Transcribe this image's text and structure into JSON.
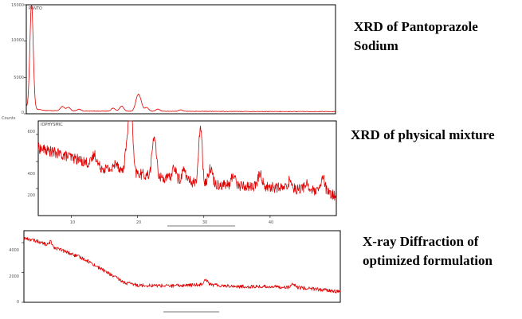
{
  "captions": {
    "c1_line1": "XRD of Pantoprazole",
    "c1_line2": "Sodium",
    "c2": "XRD of physical mixture",
    "c3_line1": "X-ray Diffraction of",
    "c3_line2": "optimized formulation"
  },
  "line_color": "#e00000",
  "chart_data": [
    {
      "type": "line",
      "title": "XRD of Pantoprazole Sodium",
      "tag": "PANTO",
      "ylabel": "Counts",
      "xlim": [
        3,
        50
      ],
      "ylim": [
        0,
        15000
      ],
      "yticks": [
        0,
        5000,
        10000,
        15000
      ],
      "ytick_labels": [
        "0",
        "5000",
        "10000",
        "15000"
      ],
      "series": [
        {
          "baseline": [
            [
              3,
              900
            ],
            [
              4,
              700
            ],
            [
              6,
              450
            ],
            [
              10,
              380
            ],
            [
              20,
              350
            ],
            [
              30,
              330
            ],
            [
              40,
              300
            ],
            [
              50,
              300
            ]
          ],
          "peaks": [
            [
              3.8,
              14500,
              0.25
            ],
            [
              8.5,
              600,
              0.3
            ],
            [
              9.4,
              500,
              0.3
            ],
            [
              11.0,
              250,
              0.3
            ],
            [
              16.2,
              400,
              0.3
            ],
            [
              17.5,
              700,
              0.3
            ],
            [
              19.8,
              1000,
              0.3
            ],
            [
              20.2,
              1800,
              0.35
            ],
            [
              21.3,
              500,
              0.3
            ],
            [
              23.0,
              300,
              0.3
            ],
            [
              26.5,
              200,
              0.3
            ]
          ],
          "noise": 35
        }
      ]
    },
    {
      "type": "line",
      "title": "XRD of physical mixture",
      "tag": "IOPHYSMIC",
      "xlim": [
        5,
        50
      ],
      "ylim": [
        0,
        700
      ],
      "yticks": [
        200,
        400,
        600
      ],
      "ytick_labels": [
        "200",
        "400",
        "600"
      ],
      "xticks": [
        10,
        20,
        30,
        40
      ],
      "xtick_labels": [
        "10",
        "20",
        "30",
        "40"
      ],
      "series": [
        {
          "baseline": [
            [
              5,
              500
            ],
            [
              10,
              430
            ],
            [
              15,
              350
            ],
            [
              20,
              310
            ],
            [
              25,
              270
            ],
            [
              30,
              240
            ],
            [
              35,
              220
            ],
            [
              40,
              210
            ],
            [
              45,
              195
            ],
            [
              50,
              150
            ]
          ],
          "peaks": [
            [
              13.5,
              80,
              0.3
            ],
            [
              16.8,
              60,
              0.3
            ],
            [
              18.5,
              250,
              0.3
            ],
            [
              19.0,
              520,
              0.25
            ],
            [
              22.5,
              300,
              0.3
            ],
            [
              25.5,
              90,
              0.3
            ],
            [
              27.0,
              80,
              0.3
            ],
            [
              29.5,
              430,
              0.25
            ],
            [
              31.0,
              120,
              0.3
            ],
            [
              34.5,
              80,
              0.3
            ],
            [
              38.5,
              100,
              0.3
            ],
            [
              43.0,
              60,
              0.3
            ],
            [
              45.5,
              50,
              0.3
            ],
            [
              48.0,
              110,
              0.3
            ]
          ],
          "noise": 40
        }
      ]
    },
    {
      "type": "line",
      "title": "X-ray Diffraction of optimized formulation",
      "xlim": [
        3,
        50
      ],
      "ylim": [
        0,
        4800
      ],
      "yticks": [
        0,
        2000,
        4000
      ],
      "ytick_labels": [
        "0",
        "2000",
        "4000"
      ],
      "series": [
        {
          "baseline": [
            [
              3,
              4300
            ],
            [
              5,
              4100
            ],
            [
              8,
              3600
            ],
            [
              12,
              2900
            ],
            [
              15,
              2100
            ],
            [
              18,
              1300
            ],
            [
              20,
              1150
            ],
            [
              25,
              1100
            ],
            [
              30,
              1200
            ],
            [
              35,
              1050
            ],
            [
              40,
              1050
            ],
            [
              45,
              950
            ],
            [
              50,
              700
            ]
          ],
          "peaks": [
            [
              7.0,
              300,
              0.2
            ],
            [
              30.0,
              350,
              0.3
            ],
            [
              43.0,
              200,
              0.3
            ]
          ],
          "noise": 120
        }
      ]
    }
  ]
}
